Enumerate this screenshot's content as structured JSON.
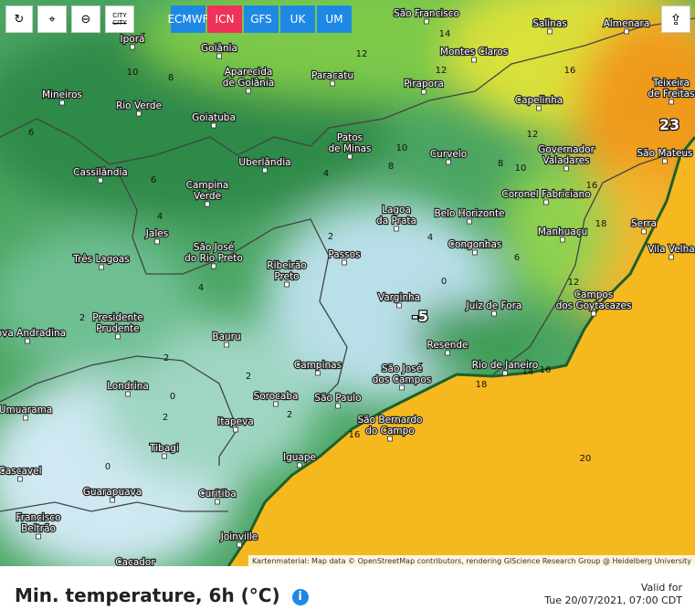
{
  "toolbar": {
    "city_button": "CITY",
    "models": [
      "ECMWF",
      "ICN",
      "GFS",
      "UK",
      "UM"
    ],
    "active_model": "ICN"
  },
  "cities": [
    {
      "lines": [
        "São Francisco"
      ]
    },
    {
      "lines": [
        "Salinas"
      ]
    },
    {
      "lines": [
        "Almenara"
      ]
    },
    {
      "lines": [
        "Iporá"
      ]
    },
    {
      "lines": [
        "Goiânia"
      ]
    },
    {
      "lines": [
        "Aparecida",
        "de Goiânia"
      ]
    },
    {
      "lines": [
        "Paracatu"
      ]
    },
    {
      "lines": [
        "Montes Claros"
      ]
    },
    {
      "lines": [
        "Pirapora"
      ]
    },
    {
      "lines": [
        "Mineiros"
      ]
    },
    {
      "lines": [
        "Rio Verde"
      ]
    },
    {
      "lines": [
        "Goiatuba"
      ]
    },
    {
      "lines": [
        "Capelinha"
      ]
    },
    {
      "lines": [
        "Teixeira",
        "de Freitas"
      ]
    },
    {
      "lines": [
        "Patos",
        "de Minas"
      ]
    },
    {
      "lines": [
        "Governador",
        "Valadares"
      ]
    },
    {
      "lines": [
        "Curvelo"
      ]
    },
    {
      "lines": [
        "Uberlândia"
      ]
    },
    {
      "lines": [
        "Cassilândia"
      ]
    },
    {
      "lines": [
        "São Mateus"
      ]
    },
    {
      "lines": [
        "Campina",
        "Verde"
      ]
    },
    {
      "lines": [
        "Coronel Fabriciano"
      ]
    },
    {
      "lines": [
        "Lagoa",
        "da Prata"
      ]
    },
    {
      "lines": [
        "Belo Horizonte"
      ]
    },
    {
      "lines": [
        "Serra"
      ]
    },
    {
      "lines": [
        "Jales"
      ]
    },
    {
      "lines": [
        "Manhuaçu"
      ]
    },
    {
      "lines": [
        "Congonhas"
      ]
    },
    {
      "lines": [
        "Vila Velha"
      ]
    },
    {
      "lines": [
        "São José",
        "do Rio Preto"
      ]
    },
    {
      "lines": [
        "Três Lagoas"
      ]
    },
    {
      "lines": [
        "Passos"
      ]
    },
    {
      "lines": [
        "Ribeirão",
        "Preto"
      ]
    },
    {
      "lines": [
        "Campos",
        "dos Goytacazes"
      ]
    },
    {
      "lines": [
        "Varginha"
      ]
    },
    {
      "lines": [
        "Juiz de Fora"
      ]
    },
    {
      "lines": [
        "Presidente",
        "Prudente"
      ]
    },
    {
      "lines": [
        "Nova Andradina"
      ]
    },
    {
      "lines": [
        "Bauru"
      ]
    },
    {
      "lines": [
        "Resende"
      ]
    },
    {
      "lines": [
        "Campinas"
      ]
    },
    {
      "lines": [
        "Rio de Janeiro"
      ]
    },
    {
      "lines": [
        "São José",
        "dos Campos"
      ]
    },
    {
      "lines": [
        "Londrina"
      ]
    },
    {
      "lines": [
        "Sorocaba"
      ]
    },
    {
      "lines": [
        "São Paulo"
      ]
    },
    {
      "lines": [
        "Umuarama"
      ]
    },
    {
      "lines": [
        "Itapeva"
      ]
    },
    {
      "lines": [
        "São Bernardo",
        "do Campo"
      ]
    },
    {
      "lines": [
        "Tibagi"
      ]
    },
    {
      "lines": [
        "Iguape"
      ]
    },
    {
      "lines": [
        "Cascavel"
      ]
    },
    {
      "lines": [
        "Guarapuava"
      ]
    },
    {
      "lines": [
        "Curitiba"
      ]
    },
    {
      "lines": [
        "Francisco",
        "Beltrão"
      ]
    },
    {
      "lines": [
        "Joinville"
      ]
    },
    {
      "lines": [
        "Caçador"
      ]
    }
  ],
  "contour_labels": [
    14,
    12,
    16,
    10,
    8,
    12,
    6,
    10,
    8,
    4,
    6,
    12,
    10,
    16,
    18,
    6,
    12,
    8,
    4,
    2,
    4,
    0,
    -5,
    2,
    2,
    0,
    2,
    2,
    4,
    2,
    0,
    18,
    14,
    16,
    20,
    16,
    23
  ],
  "attribution": "Kartenmaterial: Map data © OpenStreetMap contributors, rendering GIScience Research Group @ Heidelberg University",
  "footer": {
    "title": "Min. temperature, 6h (°C)",
    "valid_label": "Valid for",
    "valid_time": "Tue 20/07/2021, 07:00 CDT"
  }
}
